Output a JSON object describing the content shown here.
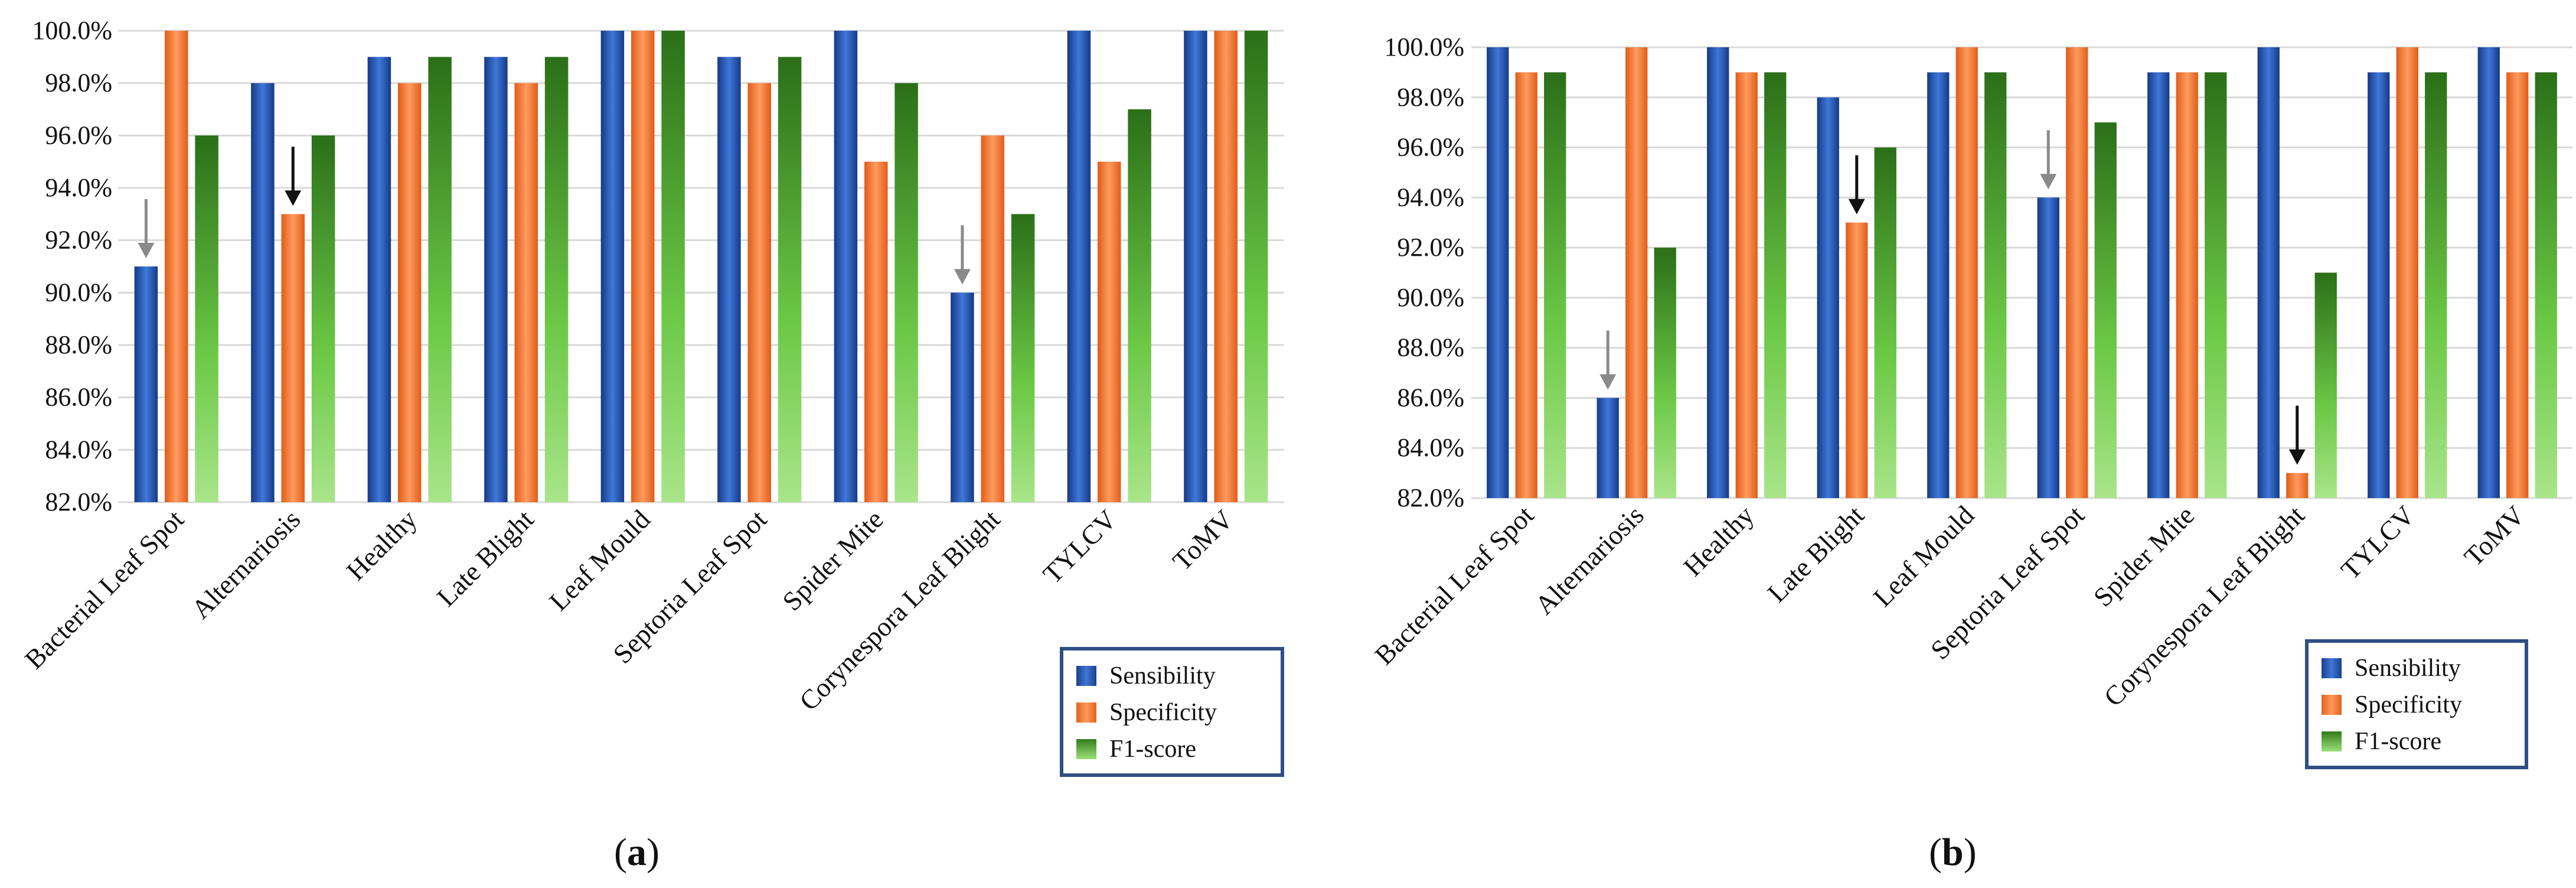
{
  "colors": {
    "sensibility": "#2e5cba",
    "specificity": "#f47b37",
    "f1": "#4aa02c",
    "grid": "#d9d9d9",
    "axis_text": "#111111",
    "arrow_dark": "#111111",
    "arrow_gray": "#8a8a8a",
    "legend_border": "#2f4f86"
  },
  "chart_data": [
    {
      "type": "bar",
      "panel": "a",
      "caption_label": "a",
      "categories": [
        "Bacterial Leaf Spot",
        "Alternariosis",
        "Healthy",
        "Late Blight",
        "Leaf Mould",
        "Septoria Leaf Spot",
        "Spider Mite",
        "Corynespora Leaf Blight",
        "TYLCV",
        "ToMV"
      ],
      "series": [
        {
          "name": "Sensibility",
          "values": [
            91,
            98,
            99,
            99,
            100,
            99,
            100,
            90,
            100,
            100
          ]
        },
        {
          "name": "Specificity",
          "values": [
            100,
            93,
            98,
            98,
            100,
            98,
            95,
            96,
            95,
            100
          ]
        },
        {
          "name": "F1-score",
          "values": [
            96,
            96,
            99,
            99,
            100,
            99,
            98,
            93,
            97,
            100
          ]
        }
      ],
      "ylim": [
        82,
        100
      ],
      "yticks": [
        "82.0%",
        "84.0%",
        "86.0%",
        "88.0%",
        "90.0%",
        "92.0%",
        "94.0%",
        "96.0%",
        "98.0%",
        "100.0%"
      ],
      "title": "",
      "xlabel": "",
      "ylabel": "",
      "legend": [
        "Sensibility",
        "Specificity",
        "F1-score"
      ],
      "legend_position": "bottom-right",
      "grid": true,
      "annotations": [
        {
          "category": "Bacterial Leaf Spot",
          "series": "Sensibility",
          "style": "gray"
        },
        {
          "category": "Alternariosis",
          "series": "Specificity",
          "style": "dark"
        },
        {
          "category": "Corynespora Leaf Blight",
          "series": "Sensibility",
          "style": "gray"
        }
      ]
    },
    {
      "type": "bar",
      "panel": "b",
      "caption_label": "b",
      "categories": [
        "Bacterial Leaf Spot",
        "Alternariosis",
        "Healthy",
        "Late Blight",
        "Leaf Mould",
        "Septoria Leaf Spot",
        "Spider Mite",
        "Corynespora Leaf Blight",
        "TYLCV",
        "ToMV"
      ],
      "series": [
        {
          "name": "Sensibility",
          "values": [
            100,
            86,
            100,
            98,
            99,
            94,
            99,
            100,
            99,
            100
          ]
        },
        {
          "name": "Specificity",
          "values": [
            99,
            100,
            99,
            93,
            100,
            100,
            99,
            83,
            100,
            99
          ]
        },
        {
          "name": "F1-score",
          "values": [
            99,
            92,
            99,
            96,
            99,
            97,
            99,
            91,
            99,
            99
          ]
        }
      ],
      "ylim": [
        82,
        100
      ],
      "yticks": [
        "82.0%",
        "84.0%",
        "86.0%",
        "88.0%",
        "90.0%",
        "92.0%",
        "94.0%",
        "96.0%",
        "98.0%",
        "100.0%"
      ],
      "title": "",
      "xlabel": "",
      "ylabel": "",
      "legend": [
        "Sensibility",
        "Specificity",
        "F1-score"
      ],
      "legend_position": "bottom-right",
      "grid": true,
      "annotations": [
        {
          "category": "Alternariosis",
          "series": "Sensibility",
          "style": "gray"
        },
        {
          "category": "Late Blight",
          "series": "Specificity",
          "style": "dark"
        },
        {
          "category": "Septoria Leaf Spot",
          "series": "Sensibility",
          "style": "gray"
        },
        {
          "category": "Corynespora Leaf Blight",
          "series": "Specificity",
          "style": "dark"
        }
      ]
    }
  ]
}
